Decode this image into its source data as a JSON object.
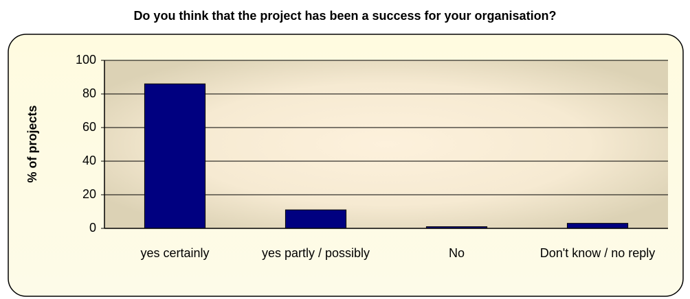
{
  "chart_data": {
    "type": "bar",
    "title": "Do you think that the project has been a success for your organisation?",
    "y_label": "% of projects",
    "categories": [
      "yes certainly",
      "yes partly / possibly",
      "No",
      "Don't know / no reply"
    ],
    "values": [
      86,
      11,
      1,
      3
    ],
    "color": "#000080",
    "ylim": [
      0,
      100
    ],
    "yticks": [
      0,
      20,
      40,
      60,
      80,
      100
    ],
    "grid": true
  }
}
